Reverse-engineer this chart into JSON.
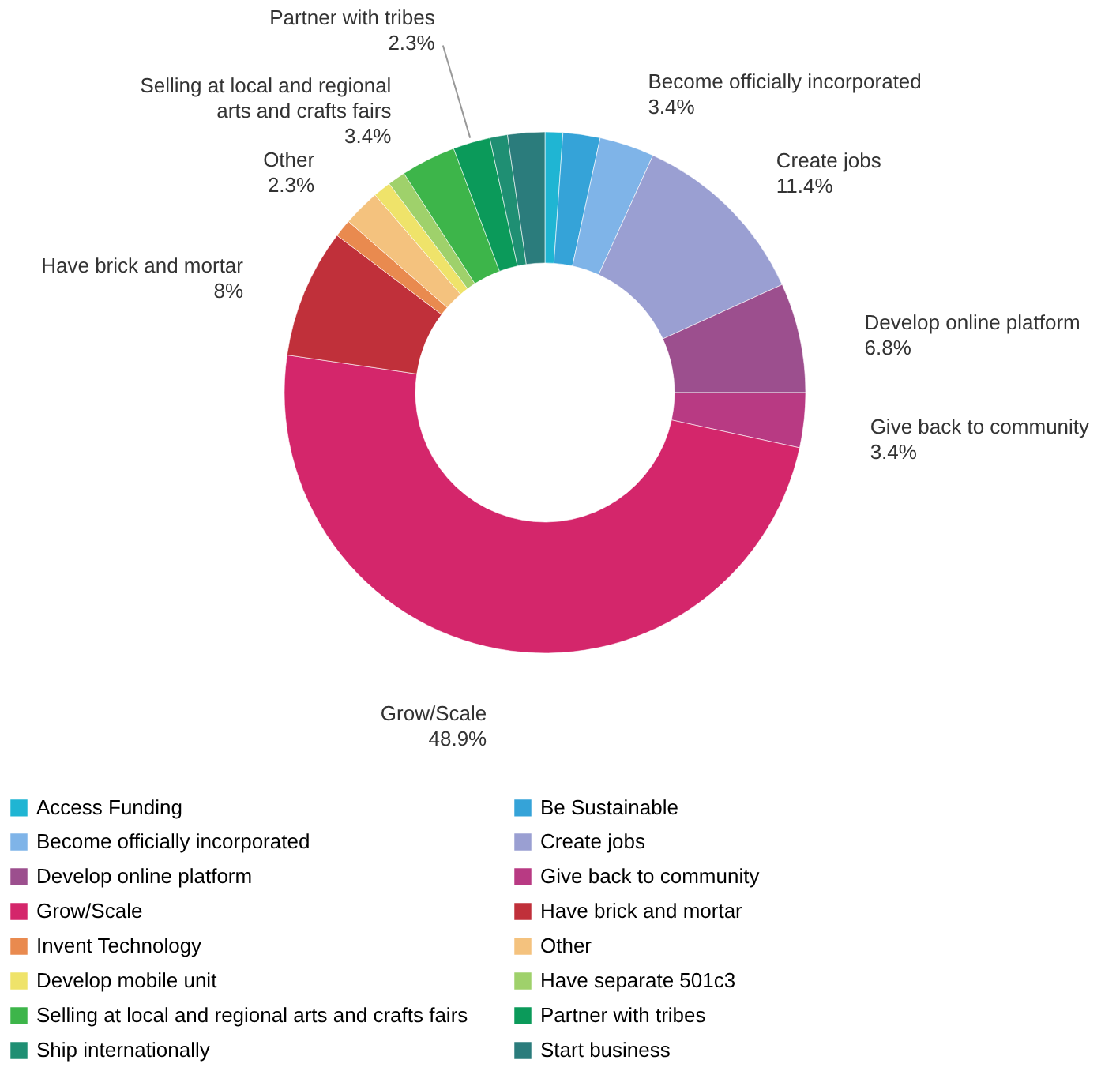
{
  "chart_data": {
    "type": "donut",
    "categories": [
      "Access Funding",
      "Be Sustainable",
      "Become officially incorporated",
      "Create jobs",
      "Develop online platform",
      "Give back to community",
      "Grow/Scale",
      "Have brick and mortar",
      "Invent Technology",
      "Other",
      "Develop mobile unit",
      "Have separate 501c3",
      "Selling at local and regional arts and crafts fairs",
      "Partner with tribes",
      "Ship internationally",
      "Start business"
    ],
    "values": [
      1.1,
      2.3,
      3.4,
      11.4,
      6.8,
      3.4,
      48.9,
      8,
      1.1,
      2.3,
      1.1,
      1.1,
      3.4,
      2.3,
      1.1,
      2.3
    ],
    "value_labels": [
      null,
      null,
      "3.4%",
      "11.4%",
      "6.8%",
      "3.4%",
      "48.9%",
      "8%",
      null,
      "2.3%",
      null,
      null,
      "3.4%",
      "2.3%",
      null,
      null
    ],
    "colors": [
      "#1fb5d3",
      "#35a3d8",
      "#7fb4e8",
      "#9a9fd2",
      "#9c4f8e",
      "#b83a83",
      "#d4266b",
      "#c0303a",
      "#e98a4f",
      "#f4c27e",
      "#efe36a",
      "#9fd16b",
      "#3db54a",
      "#0b9a5a",
      "#1f8f73",
      "#2b7c7c"
    ],
    "legend": "bottom"
  }
}
